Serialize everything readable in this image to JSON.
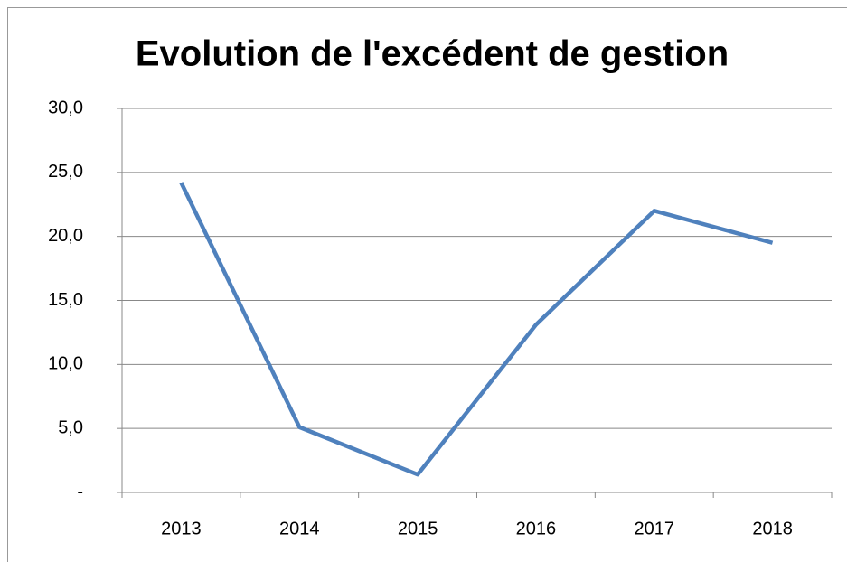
{
  "chart_data": {
    "type": "line",
    "title": "Evolution de l'excédent de gestion",
    "categories": [
      "2013",
      "2014",
      "2015",
      "2016",
      "2017",
      "2018"
    ],
    "series": [
      {
        "name": "Excédent de gestion",
        "color": "#4f81bd",
        "values": [
          24.2,
          5.1,
          1.4,
          13.1,
          22.0,
          19.5
        ]
      }
    ],
    "ylim": [
      0,
      30
    ],
    "yticks": [
      {
        "value": 0,
        "label": "-"
      },
      {
        "value": 5,
        "label": "5,0"
      },
      {
        "value": 10,
        "label": "10,0"
      },
      {
        "value": 15,
        "label": "15,0"
      },
      {
        "value": 20,
        "label": "20,0"
      },
      {
        "value": 25,
        "label": "25,0"
      },
      {
        "value": 30,
        "label": "30,0"
      }
    ],
    "grid": true
  }
}
